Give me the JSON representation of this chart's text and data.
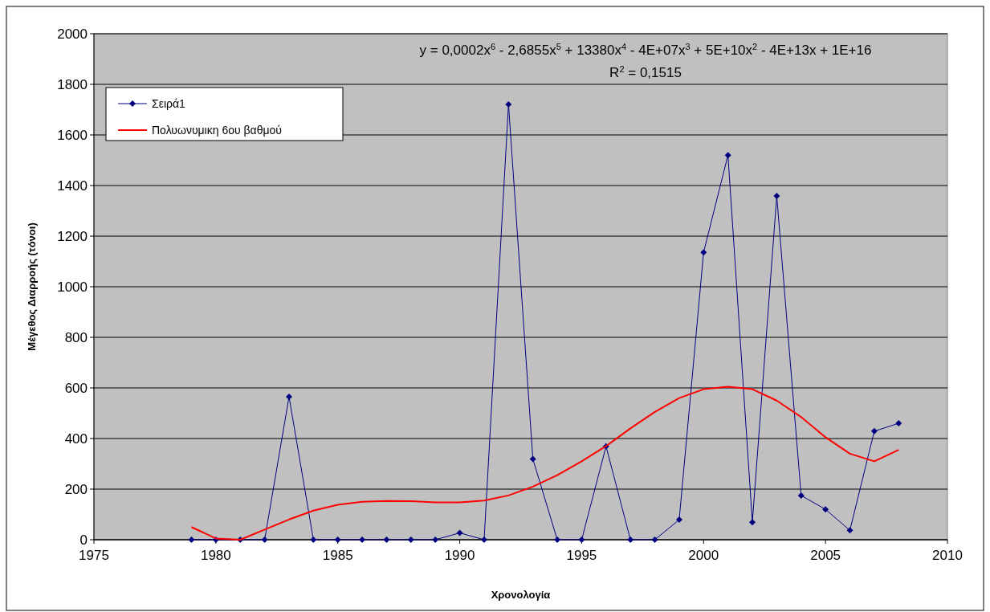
{
  "chart_data": {
    "type": "line",
    "xlabel": "Χρονολογία",
    "ylabel": "Μέγεθος Διαρροής (τόνοι)",
    "xlim": [
      1975,
      2010
    ],
    "xticks": [
      1975,
      1980,
      1985,
      1990,
      1995,
      2000,
      2005,
      2010
    ],
    "ylim": [
      0,
      2000
    ],
    "yticks": [
      0,
      200,
      400,
      600,
      800,
      1000,
      1200,
      1400,
      1600,
      1800,
      2000
    ],
    "grid": "y",
    "legend": "top left",
    "annotations": [
      "y = 0,0002x$^{6}$ - 2,6855x$^{5}$ + 13380x$^{4}$ - 4E+07x$^{3}$ + 5E+10x$^{2}$ - 4E+13x + 1E+16",
      "R$^{2}$ = 0,1515"
    ],
    "series": [
      {
        "name": "Σειρά1",
        "color": "#000080",
        "marker": "diamond",
        "x": [
          1979,
          1980,
          1981,
          1982,
          1983,
          1984,
          1985,
          1986,
          1987,
          1988,
          1989,
          1990,
          1991,
          1992,
          1993,
          1994,
          1995,
          1996,
          1997,
          1998,
          1999,
          2000,
          2001,
          2002,
          2003,
          2004,
          2005,
          2006,
          2007,
          2008
        ],
        "values": [
          0,
          0,
          0,
          0,
          565,
          0,
          0,
          0,
          0,
          0,
          0,
          27,
          0,
          1721,
          319,
          0,
          0,
          369,
          0,
          0,
          79,
          1136,
          1520,
          69,
          1359,
          175,
          120,
          37,
          429,
          460
        ]
      },
      {
        "name": "Πολυωνυμικη 6ου βαθμού",
        "color": "#ff0000",
        "marker": "none",
        "x": [
          1979,
          1980,
          1981,
          1982,
          1983,
          1984,
          1985,
          1986,
          1987,
          1988,
          1989,
          1990,
          1991,
          1992,
          1993,
          1994,
          1995,
          1996,
          1997,
          1998,
          1999,
          2000,
          2001,
          2002,
          2003,
          2004,
          2005,
          2006,
          2007,
          2008
        ],
        "values": [
          50,
          5,
          0,
          40,
          80,
          115,
          138,
          150,
          153,
          152,
          148,
          148,
          155,
          175,
          210,
          255,
          310,
          370,
          440,
          505,
          560,
          595,
          605,
          595,
          550,
          485,
          405,
          340,
          310,
          355
        ]
      }
    ]
  }
}
